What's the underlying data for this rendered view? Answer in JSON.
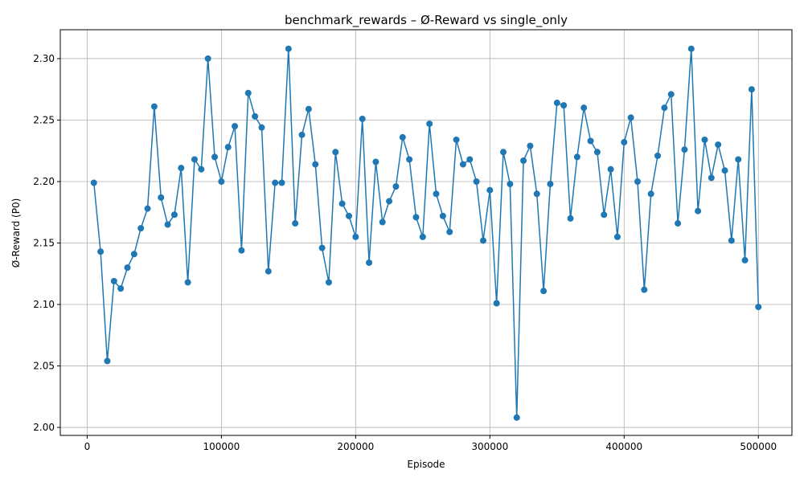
{
  "chart_data": {
    "type": "line",
    "title": "benchmark_rewards – Ø-Reward vs single_only",
    "xlabel": "Episode",
    "ylabel": "Ø-Reward (P0)",
    "xlim": [
      -20000,
      525000
    ],
    "ylim": [
      1.9935,
      2.3235
    ],
    "grid": true,
    "x_ticks": [
      0,
      100000,
      200000,
      300000,
      400000,
      500000
    ],
    "y_ticks": [
      2.0,
      2.05,
      2.1,
      2.15,
      2.2,
      2.25,
      2.3
    ],
    "x_tick_labels": [
      "0",
      "100000",
      "200000",
      "300000",
      "400000",
      "500000"
    ],
    "y_tick_labels": [
      "2.00",
      "2.05",
      "2.10",
      "2.15",
      "2.20",
      "2.25",
      "2.30"
    ],
    "series_color": "#1f77b4",
    "x": [
      5000,
      10000,
      15000,
      20000,
      25000,
      30000,
      35000,
      40000,
      45000,
      50000,
      55000,
      60000,
      65000,
      70000,
      75000,
      80000,
      85000,
      90000,
      95000,
      100000,
      105000,
      110000,
      115000,
      120000,
      125000,
      130000,
      135000,
      140000,
      145000,
      150000,
      155000,
      160000,
      165000,
      170000,
      175000,
      180000,
      185000,
      190000,
      195000,
      200000,
      205000,
      210000,
      215000,
      220000,
      225000,
      230000,
      235000,
      240000,
      245000,
      250000,
      255000,
      260000,
      265000,
      270000,
      275000,
      280000,
      285000,
      290000,
      295000,
      300000,
      305000,
      310000,
      315000,
      320000,
      325000,
      330000,
      335000,
      340000,
      345000,
      350000,
      355000,
      360000,
      365000,
      370000,
      375000,
      380000,
      385000,
      390000,
      395000,
      400000,
      405000,
      410000,
      415000,
      420000,
      425000,
      430000,
      435000,
      440000,
      445000,
      450000,
      455000,
      460000,
      465000,
      470000,
      475000,
      480000,
      485000,
      490000,
      495000,
      500000
    ],
    "values": [
      2.199,
      2.143,
      2.054,
      2.119,
      2.113,
      2.13,
      2.141,
      2.162,
      2.178,
      2.261,
      2.187,
      2.165,
      2.173,
      2.211,
      2.118,
      2.218,
      2.21,
      2.3,
      2.22,
      2.2,
      2.228,
      2.245,
      2.144,
      2.272,
      2.253,
      2.244,
      2.127,
      2.199,
      2.199,
      2.308,
      2.166,
      2.238,
      2.259,
      2.214,
      2.146,
      2.118,
      2.224,
      2.182,
      2.172,
      2.155,
      2.251,
      2.134,
      2.216,
      2.167,
      2.184,
      2.196,
      2.236,
      2.218,
      2.171,
      2.155,
      2.247,
      2.19,
      2.172,
      2.159,
      2.234,
      2.214,
      2.218,
      2.2,
      2.152,
      2.193,
      2.101,
      2.224,
      2.198,
      2.008,
      2.217,
      2.229,
      2.19,
      2.111,
      2.198,
      2.264,
      2.262,
      2.17,
      2.22,
      2.26,
      2.233,
      2.224,
      2.173,
      2.21,
      2.155,
      2.232,
      2.252,
      2.2,
      2.112,
      2.19,
      2.221,
      2.26,
      2.271,
      2.166,
      2.226,
      2.308,
      2.176,
      2.234,
      2.203,
      2.23,
      2.209,
      2.152,
      2.218,
      2.136,
      2.275,
      2.098
    ]
  }
}
